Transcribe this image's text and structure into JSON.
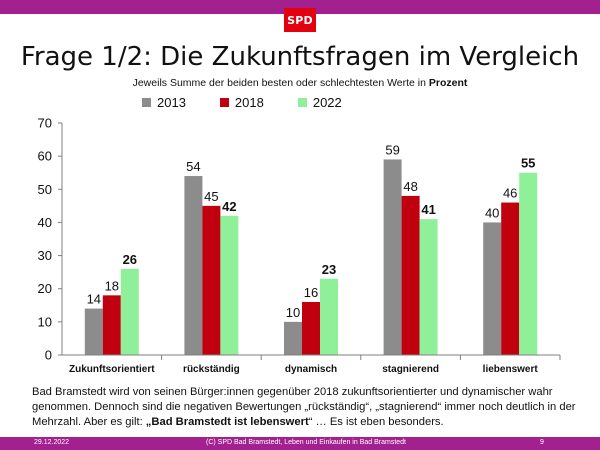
{
  "logo_text": "SPD",
  "title": "Frage 1/2:  Die Zukunftsfragen im Vergleich",
  "subtitle_prefix": "Jeweils Summe  der beiden besten oder schlechtesten Werte in ",
  "subtitle_bold": "Prozent",
  "colors": {
    "topbar": "#a3208f",
    "logo": "#e3000f"
  },
  "chart_data": {
    "type": "bar",
    "categories": [
      "Zukunftsorientiert",
      "rückständig",
      "dynamisch",
      "stagnierend",
      "liebenswert"
    ],
    "series": [
      {
        "name": "2013",
        "color": "#8c8c8c",
        "values": [
          14,
          54,
          10,
          59,
          40
        ]
      },
      {
        "name": "2018",
        "color": "#c0000f",
        "values": [
          18,
          45,
          16,
          48,
          46
        ]
      },
      {
        "name": "2022",
        "color": "#90f09a",
        "values": [
          26,
          42,
          23,
          41,
          55
        ]
      }
    ],
    "bold_series": "2022",
    "ylim": [
      0,
      70
    ],
    "yticks": [
      0,
      10,
      20,
      30,
      40,
      50,
      60,
      70
    ],
    "legend_position": "top",
    "grid": false
  },
  "note": {
    "part1": "Bad Bramstedt wird von seinen Bürger:innen gegenüber 2018 zukunftsorientierter und dynamischer wahr genommen. Dennoch sind die negativen Bewertungen „rückständig“, „stagnierend“ immer noch deutlich in der Mehrzahl. Aber es gilt: ",
    "bold": "„Bad Bramstedt ist lebenswert",
    "part2": "“ … Es ist eben besonders."
  },
  "footer": {
    "date": "29.12.2022",
    "source": "(C) SPD Bad Bramstedt, Leben und Einkaufen in Bad Bramstedt",
    "page": "9"
  }
}
